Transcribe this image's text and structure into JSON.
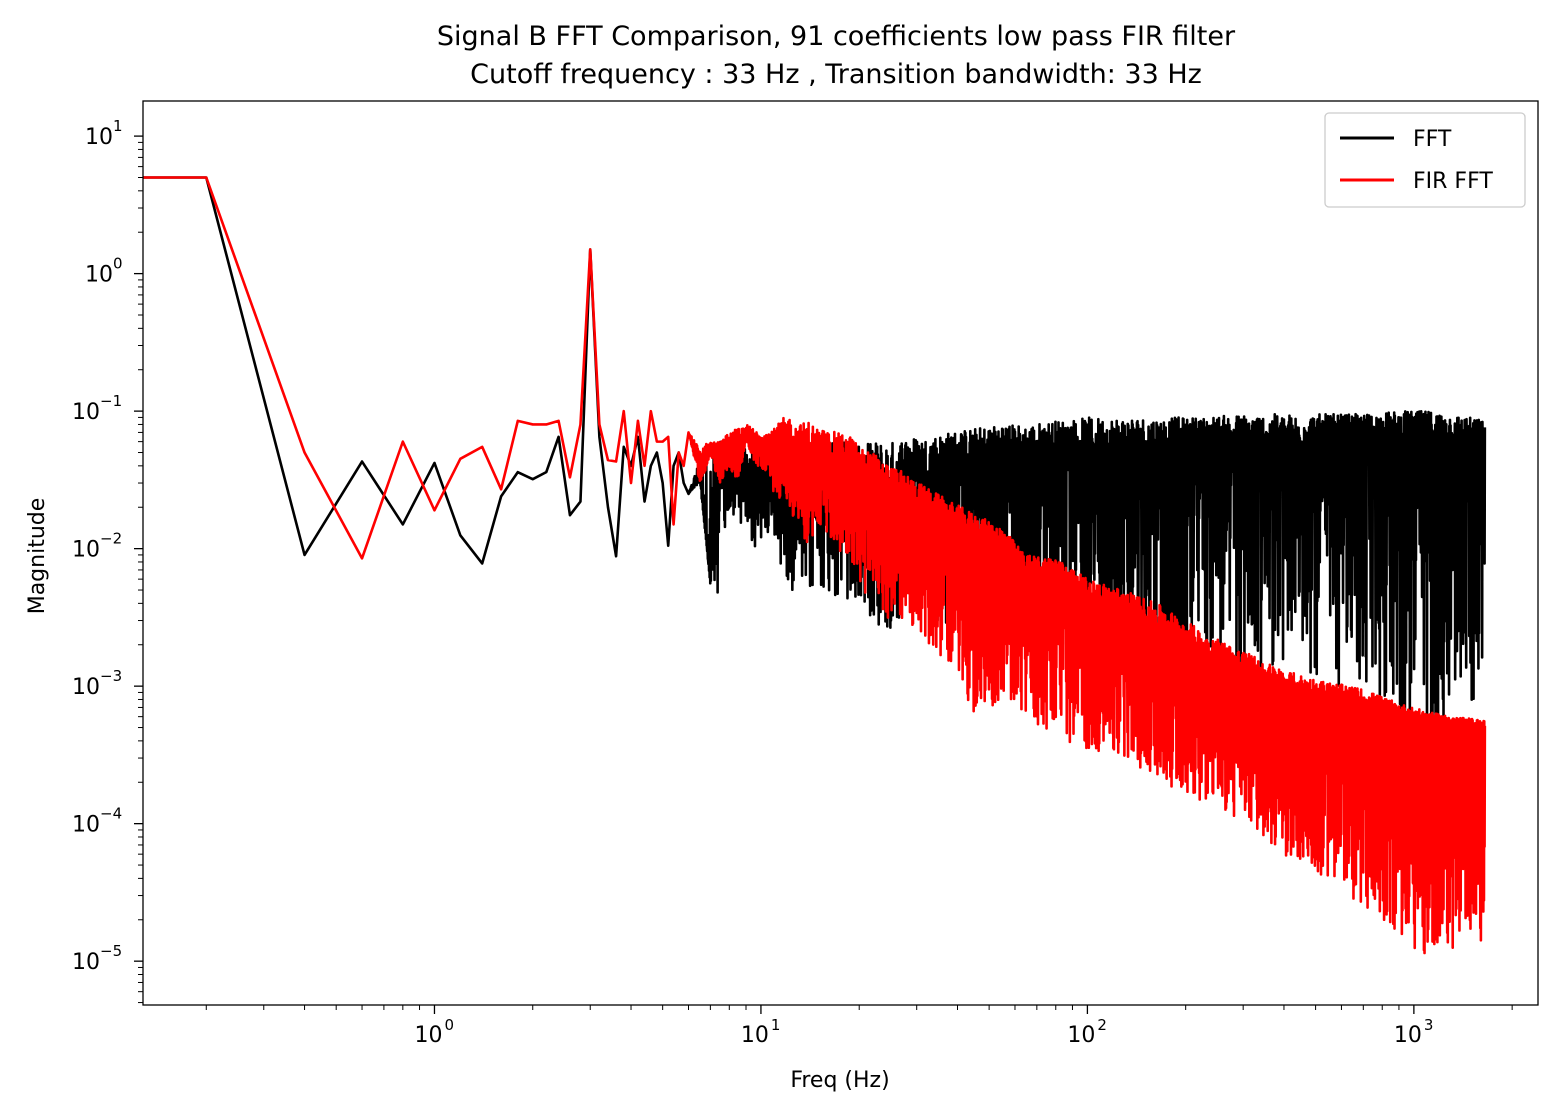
{
  "chart_data": {
    "type": "line",
    "title": "Signal B FFT Comparison, 91 coefficients low pass FIR filter",
    "subtitle": "Cutoff frequency : 33 Hz , Transition bandwidth: 33 Hz",
    "xlabel": "Freq (Hz)",
    "ylabel": "Magnitude",
    "xscale": "log",
    "yscale": "log",
    "xlim": [
      0.128,
      2400
    ],
    "ylim": [
      4.8e-06,
      18
    ],
    "x_ticks": [
      {
        "value": 1,
        "base": "10",
        "exp": "0"
      },
      {
        "value": 10,
        "base": "10",
        "exp": "1"
      },
      {
        "value": 100,
        "base": "10",
        "exp": "2"
      },
      {
        "value": 1000,
        "base": "10",
        "exp": "3"
      }
    ],
    "y_ticks": [
      {
        "value": 10,
        "base": "10",
        "exp": "1"
      },
      {
        "value": 1,
        "base": "10",
        "exp": "0"
      },
      {
        "value": 0.1,
        "base": "10",
        "exp": "−1"
      },
      {
        "value": 0.01,
        "base": "10",
        "exp": "−2"
      },
      {
        "value": 0.001,
        "base": "10",
        "exp": "−3"
      },
      {
        "value": 0.0001,
        "base": "10",
        "exp": "−4"
      },
      {
        "value": 1e-05,
        "base": "10",
        "exp": "−5"
      }
    ],
    "grid": false,
    "legend_position": "top-right",
    "series": [
      {
        "name": "FFT",
        "color": "#000000",
        "x": [
          0.128,
          0.2,
          0.4,
          0.6,
          0.8,
          1.0,
          1.2,
          1.4,
          1.6,
          1.8,
          2.0,
          2.2,
          2.4,
          2.6,
          2.8,
          3.0,
          3.2,
          3.4,
          3.6,
          3.8,
          4.0,
          4.2,
          4.4,
          4.6,
          4.8,
          5.0,
          5.2,
          5.4,
          5.6,
          5.8,
          6.0,
          6.5,
          7.0,
          7.5,
          8.0,
          8.5,
          9.0,
          9.5,
          10.0,
          11,
          12,
          13,
          14,
          15,
          17,
          19,
          20,
          22,
          25,
          28,
          32,
          38,
          45,
          55,
          65,
          80,
          100,
          130,
          170,
          220,
          300,
          400,
          520,
          700,
          900,
          1100,
          1300,
          1500,
          1650
        ],
        "y": [
          5,
          5,
          0.009,
          0.043,
          0.015,
          0.042,
          0.0125,
          0.0078,
          0.024,
          0.036,
          0.032,
          0.036,
          0.065,
          0.0175,
          0.022,
          1.5,
          0.065,
          0.02,
          0.0088,
          0.055,
          0.04,
          0.065,
          0.022,
          0.04,
          0.05,
          0.03,
          0.0105,
          0.04,
          0.05,
          0.03,
          0.025,
          0.035,
          0.0055,
          0.06,
          0.02,
          0.04,
          0.03,
          0.028,
          0.04,
          0.03,
          0.03,
          0.035,
          0.02,
          0.04,
          0.03,
          0.025,
          0.01,
          0.03,
          0.02,
          0.035,
          0.03,
          0.045,
          0.04,
          0.05,
          0.04,
          0.05,
          0.04,
          0.05,
          0.045,
          0.055,
          0.05,
          0.05,
          0.055,
          0.06,
          0.06,
          0.065,
          0.06,
          0.06,
          0.06
        ],
        "y_min": [
          5,
          5,
          0.009,
          0.043,
          0.015,
          0.042,
          0.0125,
          0.0078,
          0.024,
          0.036,
          0.032,
          0.036,
          0.065,
          0.0175,
          0.022,
          1.5,
          0.065,
          0.02,
          0.0088,
          0.055,
          0.04,
          0.065,
          0.022,
          0.04,
          0.05,
          0.03,
          0.0105,
          0.04,
          0.05,
          0.03,
          0.025,
          0.03,
          0.0055,
          0.0045,
          0.02,
          0.015,
          0.012,
          0.01,
          0.01,
          0.009,
          0.006,
          0.004,
          0.004,
          0.005,
          0.004,
          0.003,
          0.004,
          0.003,
          0.002,
          0.004,
          0.003,
          0.002,
          0.002,
          0.0012,
          0.002,
          0.002,
          0.0012,
          0.0015,
          0.0002,
          0.002,
          0.001,
          0.0015,
          0.001,
          0.0008,
          0.0006,
          0.0002,
          0.0008,
          0.0006,
          0.0015
        ],
        "y_max": [
          5,
          5,
          0.009,
          0.043,
          0.015,
          0.042,
          0.0125,
          0.0078,
          0.024,
          0.036,
          0.032,
          0.036,
          0.065,
          0.0175,
          0.022,
          1.5,
          0.065,
          0.02,
          0.0088,
          0.055,
          0.04,
          0.065,
          0.022,
          0.04,
          0.05,
          0.03,
          0.0105,
          0.04,
          0.05,
          0.03,
          0.025,
          0.045,
          0.05,
          0.06,
          0.05,
          0.055,
          0.06,
          0.055,
          0.06,
          0.06,
          0.06,
          0.065,
          0.06,
          0.065,
          0.06,
          0.06,
          0.055,
          0.06,
          0.06,
          0.065,
          0.065,
          0.07,
          0.075,
          0.08,
          0.08,
          0.085,
          0.09,
          0.09,
          0.09,
          0.09,
          0.095,
          0.095,
          0.095,
          0.095,
          0.1,
          0.1,
          0.095,
          0.09,
          0.085
        ]
      },
      {
        "name": "FIR FFT",
        "color": "#ff0000",
        "x": [
          0.128,
          0.2,
          0.4,
          0.6,
          0.8,
          1.0,
          1.2,
          1.4,
          1.6,
          1.8,
          2.0,
          2.2,
          2.4,
          2.6,
          2.8,
          3.0,
          3.2,
          3.4,
          3.6,
          3.8,
          4.0,
          4.2,
          4.4,
          4.6,
          4.8,
          5.0,
          5.2,
          5.4,
          5.6,
          5.8,
          6.0,
          6.5,
          7.0,
          7.5,
          8.0,
          8.5,
          9.0,
          9.5,
          10.0,
          11,
          12,
          13,
          14,
          15,
          17,
          19,
          20,
          22,
          25,
          28,
          32,
          38,
          45,
          55,
          65,
          80,
          100,
          130,
          170,
          220,
          300,
          400,
          520,
          700,
          900,
          1100,
          1300,
          1500,
          1650
        ],
        "y": [
          5,
          5,
          0.05,
          0.0085,
          0.06,
          0.019,
          0.045,
          0.055,
          0.027,
          0.085,
          0.08,
          0.08,
          0.085,
          0.033,
          0.08,
          1.5,
          0.08,
          0.044,
          0.043,
          0.1,
          0.03,
          0.085,
          0.04,
          0.1,
          0.06,
          0.06,
          0.065,
          0.015,
          0.05,
          0.04,
          0.07,
          0.04,
          0.055,
          0.05,
          0.06,
          0.04,
          0.075,
          0.06,
          0.06,
          0.05,
          0.06,
          0.045,
          0.05,
          0.045,
          0.04,
          0.045,
          0.03,
          0.03,
          0.025,
          0.02,
          0.02,
          0.015,
          0.012,
          0.011,
          0.006,
          0.007,
          0.0045,
          0.0035,
          0.0025,
          0.0017,
          0.0012,
          0.0009,
          0.0008,
          0.0007,
          0.0006,
          0.00055,
          0.00055,
          0.0005,
          0.0005
        ],
        "y_min": [
          5,
          5,
          0.05,
          0.0085,
          0.06,
          0.019,
          0.045,
          0.055,
          0.027,
          0.085,
          0.08,
          0.08,
          0.085,
          0.033,
          0.08,
          1.5,
          0.08,
          0.044,
          0.043,
          0.1,
          0.03,
          0.085,
          0.04,
          0.1,
          0.06,
          0.06,
          0.065,
          0.015,
          0.05,
          0.04,
          0.07,
          0.03,
          0.045,
          0.03,
          0.04,
          0.03,
          0.06,
          0.04,
          0.04,
          0.025,
          0.02,
          0.015,
          0.01,
          0.015,
          0.01,
          0.008,
          0.005,
          0.004,
          0.003,
          0.003,
          0.002,
          0.0015,
          0.0006,
          0.0008,
          0.0006,
          0.0004,
          0.00035,
          0.0003,
          0.0002,
          0.00015,
          0.0001,
          6e-05,
          4e-05,
          2.5e-05,
          1.5e-05,
          1e-05,
          1.2e-05,
          1.5e-05,
          1e-05
        ],
        "y_max": [
          5,
          5,
          0.05,
          0.0085,
          0.06,
          0.019,
          0.045,
          0.055,
          0.027,
          0.085,
          0.08,
          0.08,
          0.085,
          0.033,
          0.08,
          1.5,
          0.08,
          0.044,
          0.043,
          0.1,
          0.03,
          0.085,
          0.04,
          0.1,
          0.06,
          0.06,
          0.065,
          0.015,
          0.05,
          0.04,
          0.07,
          0.055,
          0.06,
          0.06,
          0.07,
          0.075,
          0.08,
          0.075,
          0.07,
          0.075,
          0.095,
          0.08,
          0.085,
          0.075,
          0.07,
          0.065,
          0.055,
          0.05,
          0.04,
          0.035,
          0.028,
          0.022,
          0.018,
          0.014,
          0.009,
          0.0085,
          0.006,
          0.005,
          0.0038,
          0.0026,
          0.0018,
          0.0013,
          0.0011,
          0.00095,
          0.00075,
          0.00065,
          0.0006,
          0.00058,
          0.00056
        ]
      }
    ]
  }
}
